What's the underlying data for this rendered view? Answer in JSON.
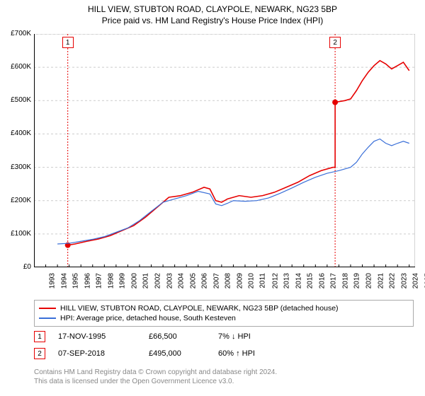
{
  "title_line1": "HILL VIEW, STUBTON ROAD, CLAYPOLE, NEWARK, NG23 5BP",
  "title_line2": "Price paid vs. HM Land Registry's House Price Index (HPI)",
  "chart": {
    "type": "line",
    "background_color": "#ffffff",
    "grid_color": "#cccccc",
    "border_color": "#aaaaaa",
    "x_years": [
      1993,
      1994,
      1995,
      1996,
      1997,
      1998,
      1999,
      2000,
      2001,
      2002,
      2003,
      2004,
      2005,
      2006,
      2007,
      2008,
      2009,
      2010,
      2011,
      2012,
      2013,
      2014,
      2015,
      2016,
      2017,
      2018,
      2019,
      2020,
      2021,
      2022,
      2023,
      2024,
      2025
    ],
    "x_min": 1993,
    "x_max": 2025.5,
    "y_min": 0,
    "y_max": 700000,
    "y_ticks": [
      0,
      100000,
      200000,
      300000,
      400000,
      500000,
      600000,
      700000
    ],
    "y_tick_labels": [
      "£0",
      "£100K",
      "£200K",
      "£300K",
      "£400K",
      "£500K",
      "£600K",
      "£700K"
    ],
    "y_gridlines": [
      100000,
      200000,
      300000,
      400000,
      500000,
      600000,
      700000
    ],
    "series": [
      {
        "name": "property",
        "label": "HILL VIEW, STUBTON ROAD, CLAYPOLE, NEWARK, NG23 5BP (detached house)",
        "color": "#e60000",
        "line_width": 1.6,
        "data": [
          [
            1995.88,
            66500
          ],
          [
            1996.5,
            70000
          ],
          [
            1997.5,
            78000
          ],
          [
            1998.5,
            85000
          ],
          [
            1999.5,
            95000
          ],
          [
            2000.5,
            110000
          ],
          [
            2001.5,
            125000
          ],
          [
            2002.5,
            150000
          ],
          [
            2003.5,
            180000
          ],
          [
            2004.5,
            210000
          ],
          [
            2005.5,
            215000
          ],
          [
            2006.5,
            225000
          ],
          [
            2007.5,
            240000
          ],
          [
            2008.0,
            235000
          ],
          [
            2008.5,
            200000
          ],
          [
            2009.0,
            195000
          ],
          [
            2009.5,
            205000
          ],
          [
            2010.5,
            215000
          ],
          [
            2011.5,
            210000
          ],
          [
            2012.5,
            215000
          ],
          [
            2013.5,
            225000
          ],
          [
            2014.5,
            240000
          ],
          [
            2015.5,
            255000
          ],
          [
            2016.5,
            275000
          ],
          [
            2017.5,
            290000
          ],
          [
            2018.5,
            300000
          ],
          [
            2018.68,
            495000
          ],
          [
            2019.5,
            500000
          ],
          [
            2020.0,
            505000
          ],
          [
            2020.5,
            530000
          ],
          [
            2021.0,
            560000
          ],
          [
            2021.5,
            585000
          ],
          [
            2022.0,
            605000
          ],
          [
            2022.5,
            620000
          ],
          [
            2023.0,
            610000
          ],
          [
            2023.5,
            595000
          ],
          [
            2024.0,
            605000
          ],
          [
            2024.5,
            615000
          ],
          [
            2025.0,
            590000
          ]
        ],
        "gap_after_index": 25
      },
      {
        "name": "hpi",
        "label": "HPI: Average price, detached house, South Kesteven",
        "color": "#3a6fd8",
        "line_width": 1.2,
        "data": [
          [
            1995.0,
            70000
          ],
          [
            1996.0,
            72000
          ],
          [
            1997.0,
            78000
          ],
          [
            1998.0,
            84000
          ],
          [
            1999.0,
            92000
          ],
          [
            2000.0,
            105000
          ],
          [
            2001.0,
            118000
          ],
          [
            2002.0,
            140000
          ],
          [
            2003.0,
            168000
          ],
          [
            2004.0,
            195000
          ],
          [
            2005.0,
            205000
          ],
          [
            2006.0,
            215000
          ],
          [
            2007.0,
            228000
          ],
          [
            2008.0,
            220000
          ],
          [
            2008.5,
            190000
          ],
          [
            2009.0,
            185000
          ],
          [
            2009.5,
            192000
          ],
          [
            2010.0,
            200000
          ],
          [
            2011.0,
            198000
          ],
          [
            2012.0,
            200000
          ],
          [
            2013.0,
            208000
          ],
          [
            2014.0,
            222000
          ],
          [
            2015.0,
            238000
          ],
          [
            2016.0,
            255000
          ],
          [
            2017.0,
            270000
          ],
          [
            2018.0,
            282000
          ],
          [
            2019.0,
            290000
          ],
          [
            2020.0,
            300000
          ],
          [
            2020.5,
            315000
          ],
          [
            2021.0,
            340000
          ],
          [
            2021.5,
            360000
          ],
          [
            2022.0,
            378000
          ],
          [
            2022.5,
            385000
          ],
          [
            2023.0,
            372000
          ],
          [
            2023.5,
            365000
          ],
          [
            2024.0,
            372000
          ],
          [
            2024.5,
            378000
          ],
          [
            2025.0,
            372000
          ]
        ]
      }
    ],
    "events": [
      {
        "n": "1",
        "year": 1995.88,
        "price": 66500,
        "border_color": "#e60000"
      },
      {
        "n": "2",
        "year": 2018.68,
        "price": 495000,
        "border_color": "#e60000"
      }
    ],
    "event_line_color": "#e60000",
    "event_dot_color": "#e60000"
  },
  "legend": {
    "border_color": "#aaaaaa"
  },
  "sales": [
    {
      "n": "1",
      "date": "17-NOV-1995",
      "price": "£66,500",
      "hpi": "7% ↓ HPI",
      "border_color": "#e60000"
    },
    {
      "n": "2",
      "date": "07-SEP-2018",
      "price": "£495,000",
      "hpi": "60% ↑ HPI",
      "border_color": "#e60000"
    }
  ],
  "footer": {
    "line1": "Contains HM Land Registry data © Crown copyright and database right 2024.",
    "line2": "This data is licensed under the Open Government Licence v3.0.",
    "color": "#888888"
  }
}
